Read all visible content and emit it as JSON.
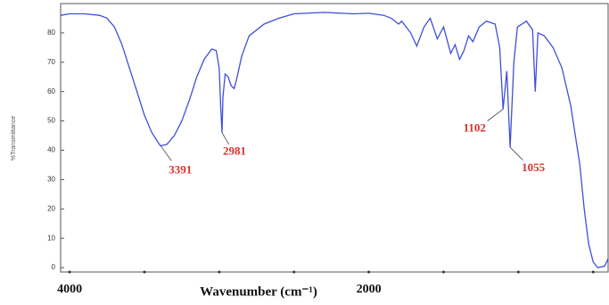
{
  "chart_data": {
    "type": "line",
    "xlabel": "Wavenumber (cm⁻¹)",
    "ylabel": "%Transmittance",
    "x": [
      4060,
      4000,
      3900,
      3800,
      3750,
      3700,
      3650,
      3600,
      3550,
      3500,
      3450,
      3400,
      3391,
      3350,
      3300,
      3250,
      3200,
      3150,
      3100,
      3050,
      3020,
      3000,
      2990,
      2981,
      2975,
      2960,
      2940,
      2920,
      2900,
      2880,
      2850,
      2800,
      2700,
      2600,
      2500,
      2300,
      2100,
      2000,
      1900,
      1850,
      1800,
      1780,
      1720,
      1679,
      1631,
      1589,
      1542,
      1500,
      1452,
      1423,
      1393,
      1363,
      1333,
      1304,
      1262,
      1214,
      1155,
      1125,
      1102,
      1077,
      1055,
      1030,
      1006,
      946,
      905,
      887,
      869,
      827,
      768,
      708,
      649,
      589,
      560,
      530,
      500,
      470,
      423,
      400
    ],
    "series": [
      {
        "color": "#3f4fd8",
        "values": [
          86,
          86.5,
          86.5,
          86,
          85,
          82,
          76,
          68,
          60,
          52,
          46,
          42,
          41.5,
          42,
          45,
          50,
          57,
          65,
          71,
          74.5,
          74,
          68,
          55,
          46,
          58,
          66,
          65,
          62,
          61,
          65,
          72,
          79,
          83,
          85,
          86.5,
          87,
          86.5,
          86.7,
          86,
          85,
          83,
          84,
          80,
          75.5,
          82,
          85,
          78,
          82,
          73,
          76,
          71,
          74,
          79,
          77,
          82,
          84,
          83,
          75,
          54,
          67,
          41,
          70,
          82,
          84,
          81,
          60,
          80,
          79,
          75,
          68,
          55,
          35,
          20,
          8,
          2,
          0,
          0.5,
          3
        ]
      }
    ],
    "xlim": [
      4060,
      400
    ],
    "xticks": [
      4000,
      2000
    ],
    "xminorticks": [
      3500,
      3000,
      2500,
      1500,
      1000,
      500
    ],
    "ylim": [
      -1.5,
      90
    ],
    "yticks": [
      0,
      10,
      20,
      30,
      40,
      50,
      60,
      70,
      80
    ],
    "annotations": [
      {
        "label": "3391",
        "x": 3391,
        "y": 41.5,
        "color": "#e0302c"
      },
      {
        "label": "2981",
        "x": 2981,
        "y": 46,
        "color": "#e0302c"
      },
      {
        "label": "1102",
        "x": 1102,
        "y": 54,
        "color": "#e0302c"
      },
      {
        "label": "1055",
        "x": 1055,
        "y": 41,
        "color": "#e0302c"
      }
    ]
  }
}
